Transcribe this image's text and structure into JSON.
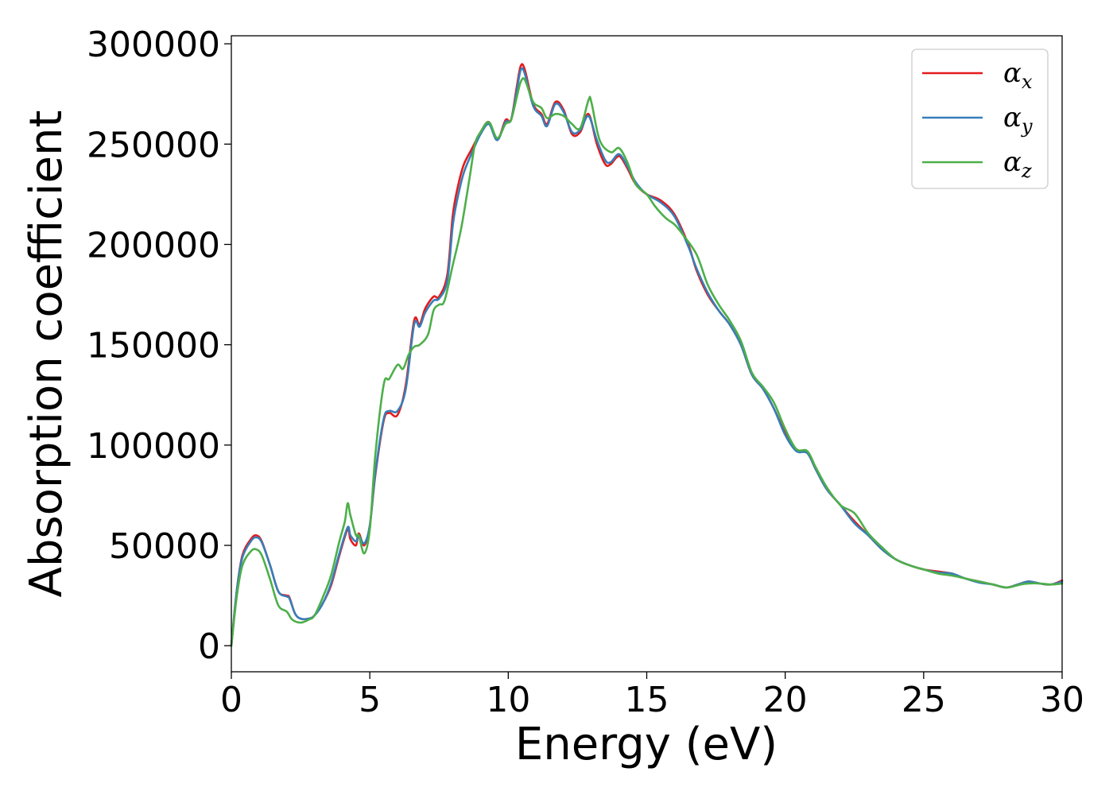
{
  "chart_data": {
    "type": "line",
    "title": "",
    "xlabel": "Energy (eV)",
    "ylabel": "Absorption coefficient",
    "xlim": [
      0,
      30
    ],
    "ylim": [
      -13000,
      304000
    ],
    "xticks": [
      0,
      5,
      10,
      15,
      20,
      25,
      30
    ],
    "yticks": [
      0,
      50000,
      100000,
      150000,
      200000,
      250000,
      300000
    ],
    "grid": false,
    "legend_position": "top-right",
    "series": [
      {
        "name": "α",
        "subscript": "x",
        "color": "#e41a1c",
        "points": [
          [
            0,
            0
          ],
          [
            0.2,
            28000
          ],
          [
            0.4,
            45000
          ],
          [
            0.7,
            53000
          ],
          [
            0.9,
            55000
          ],
          [
            1.1,
            52000
          ],
          [
            1.4,
            40000
          ],
          [
            1.7,
            27000
          ],
          [
            2.0,
            25000
          ],
          [
            2.1,
            24000
          ],
          [
            2.3,
            16000
          ],
          [
            2.5,
            13500
          ],
          [
            2.8,
            13500
          ],
          [
            3.0,
            15000
          ],
          [
            3.3,
            21000
          ],
          [
            3.6,
            30000
          ],
          [
            3.9,
            45000
          ],
          [
            4.2,
            58000
          ],
          [
            4.3,
            53000
          ],
          [
            4.5,
            50000
          ],
          [
            4.6,
            56000
          ],
          [
            4.8,
            50000
          ],
          [
            5.0,
            60000
          ],
          [
            5.2,
            85000
          ],
          [
            5.5,
            112000
          ],
          [
            5.7,
            116000
          ],
          [
            6.0,
            115000
          ],
          [
            6.3,
            130000
          ],
          [
            6.6,
            162000
          ],
          [
            6.8,
            160000
          ],
          [
            7.0,
            168000
          ],
          [
            7.3,
            174000
          ],
          [
            7.5,
            174000
          ],
          [
            7.8,
            185000
          ],
          [
            8.0,
            215000
          ],
          [
            8.2,
            230000
          ],
          [
            8.4,
            240000
          ],
          [
            8.7,
            248000
          ],
          [
            9.0,
            256000
          ],
          [
            9.3,
            261000
          ],
          [
            9.6,
            252000
          ],
          [
            9.9,
            262000
          ],
          [
            10.1,
            262000
          ],
          [
            10.3,
            278000
          ],
          [
            10.45,
            289000
          ],
          [
            10.6,
            287000
          ],
          [
            10.9,
            270000
          ],
          [
            11.2,
            265000
          ],
          [
            11.4,
            260000
          ],
          [
            11.7,
            271000
          ],
          [
            12.0,
            267000
          ],
          [
            12.3,
            255000
          ],
          [
            12.6,
            256000
          ],
          [
            12.9,
            265000
          ],
          [
            13.2,
            250000
          ],
          [
            13.5,
            240000
          ],
          [
            13.7,
            240000
          ],
          [
            14.0,
            244000
          ],
          [
            14.3,
            238000
          ],
          [
            14.6,
            230000
          ],
          [
            15.0,
            225000
          ],
          [
            15.5,
            222000
          ],
          [
            16.0,
            215000
          ],
          [
            16.5,
            200000
          ],
          [
            16.8,
            187000
          ],
          [
            17.2,
            175000
          ],
          [
            17.6,
            167000
          ],
          [
            18.0,
            160000
          ],
          [
            18.4,
            150000
          ],
          [
            18.8,
            135000
          ],
          [
            19.2,
            128000
          ],
          [
            19.6,
            118000
          ],
          [
            20.0,
            106000
          ],
          [
            20.4,
            98000
          ],
          [
            20.8,
            96000
          ],
          [
            21.1,
            88000
          ],
          [
            21.5,
            78000
          ],
          [
            22.0,
            70000
          ],
          [
            22.5,
            62000
          ],
          [
            23.0,
            55000
          ],
          [
            23.5,
            48000
          ],
          [
            24.0,
            43000
          ],
          [
            24.5,
            40000
          ],
          [
            25.0,
            38000
          ],
          [
            25.5,
            37000
          ],
          [
            26.0,
            36000
          ],
          [
            26.5,
            33500
          ],
          [
            27.0,
            32000
          ],
          [
            27.5,
            30500
          ],
          [
            28.0,
            29000
          ],
          [
            28.5,
            31000
          ],
          [
            28.8,
            32000
          ],
          [
            29.2,
            31000
          ],
          [
            29.6,
            30500
          ],
          [
            30.0,
            32500
          ]
        ]
      },
      {
        "name": "α",
        "subscript": "y",
        "color": "#377eb8",
        "points": [
          [
            0,
            0
          ],
          [
            0.2,
            28000
          ],
          [
            0.4,
            44000
          ],
          [
            0.7,
            52000
          ],
          [
            0.9,
            54000
          ],
          [
            1.1,
            51500
          ],
          [
            1.4,
            40000
          ],
          [
            1.7,
            27000
          ],
          [
            2.0,
            24500
          ],
          [
            2.1,
            23500
          ],
          [
            2.3,
            16000
          ],
          [
            2.5,
            13500
          ],
          [
            2.8,
            13500
          ],
          [
            3.0,
            15000
          ],
          [
            3.3,
            21000
          ],
          [
            3.6,
            31000
          ],
          [
            3.9,
            46000
          ],
          [
            4.2,
            59000
          ],
          [
            4.3,
            55000
          ],
          [
            4.5,
            52000
          ],
          [
            4.6,
            55000
          ],
          [
            4.8,
            51000
          ],
          [
            5.0,
            60000
          ],
          [
            5.2,
            86000
          ],
          [
            5.5,
            113000
          ],
          [
            5.7,
            117000
          ],
          [
            6.0,
            117000
          ],
          [
            6.3,
            128000
          ],
          [
            6.6,
            160000
          ],
          [
            6.8,
            159000
          ],
          [
            7.0,
            166000
          ],
          [
            7.3,
            172000
          ],
          [
            7.5,
            173000
          ],
          [
            7.8,
            182000
          ],
          [
            8.0,
            210000
          ],
          [
            8.2,
            225000
          ],
          [
            8.4,
            236000
          ],
          [
            8.7,
            246000
          ],
          [
            9.0,
            255000
          ],
          [
            9.3,
            260000
          ],
          [
            9.6,
            252000
          ],
          [
            9.9,
            261000
          ],
          [
            10.1,
            262000
          ],
          [
            10.3,
            276000
          ],
          [
            10.45,
            287000
          ],
          [
            10.6,
            285000
          ],
          [
            10.9,
            269000
          ],
          [
            11.2,
            264000
          ],
          [
            11.4,
            259000
          ],
          [
            11.7,
            270000
          ],
          [
            12.0,
            266000
          ],
          [
            12.3,
            256000
          ],
          [
            12.6,
            257000
          ],
          [
            12.9,
            264000
          ],
          [
            13.2,
            252000
          ],
          [
            13.5,
            242000
          ],
          [
            13.7,
            241000
          ],
          [
            14.0,
            245000
          ],
          [
            14.3,
            239000
          ],
          [
            14.6,
            231000
          ],
          [
            15.0,
            225000
          ],
          [
            15.5,
            221000
          ],
          [
            16.0,
            214000
          ],
          [
            16.5,
            199000
          ],
          [
            16.8,
            188000
          ],
          [
            17.2,
            176000
          ],
          [
            17.6,
            167000
          ],
          [
            18.0,
            160000
          ],
          [
            18.4,
            150000
          ],
          [
            18.8,
            135000
          ],
          [
            19.2,
            128000
          ],
          [
            19.6,
            118000
          ],
          [
            20.0,
            105000
          ],
          [
            20.4,
            97000
          ],
          [
            20.8,
            96000
          ],
          [
            21.1,
            88000
          ],
          [
            21.5,
            78000
          ],
          [
            22.0,
            70000
          ],
          [
            22.5,
            61000
          ],
          [
            23.0,
            55000
          ],
          [
            23.5,
            48000
          ],
          [
            24.0,
            43000
          ],
          [
            24.5,
            40000
          ],
          [
            25.0,
            38000
          ],
          [
            25.5,
            36500
          ],
          [
            26.0,
            36000
          ],
          [
            26.5,
            33500
          ],
          [
            27.0,
            31500
          ],
          [
            27.5,
            30500
          ],
          [
            28.0,
            29000
          ],
          [
            28.5,
            31000
          ],
          [
            28.8,
            32000
          ],
          [
            29.2,
            31000
          ],
          [
            29.6,
            30500
          ],
          [
            30.0,
            32000
          ]
        ]
      },
      {
        "name": "α",
        "subscript": "z",
        "color": "#4daf4a",
        "points": [
          [
            0,
            0
          ],
          [
            0.2,
            25000
          ],
          [
            0.4,
            40000
          ],
          [
            0.7,
            47000
          ],
          [
            0.9,
            48000
          ],
          [
            1.1,
            45000
          ],
          [
            1.4,
            33000
          ],
          [
            1.7,
            20000
          ],
          [
            2.0,
            17000
          ],
          [
            2.2,
            13000
          ],
          [
            2.5,
            11500
          ],
          [
            2.8,
            13000
          ],
          [
            3.0,
            15000
          ],
          [
            3.3,
            24000
          ],
          [
            3.6,
            35000
          ],
          [
            3.9,
            52000
          ],
          [
            4.1,
            62000
          ],
          [
            4.2,
            71000
          ],
          [
            4.3,
            65000
          ],
          [
            4.5,
            55000
          ],
          [
            4.6,
            55000
          ],
          [
            4.8,
            46000
          ],
          [
            5.0,
            58000
          ],
          [
            5.2,
            95000
          ],
          [
            5.5,
            130000
          ],
          [
            5.7,
            133000
          ],
          [
            6.0,
            140000
          ],
          [
            6.2,
            138000
          ],
          [
            6.4,
            145000
          ],
          [
            6.6,
            149000
          ],
          [
            6.8,
            150000
          ],
          [
            7.1,
            155000
          ],
          [
            7.3,
            167000
          ],
          [
            7.5,
            170000
          ],
          [
            7.7,
            172000
          ],
          [
            8.0,
            190000
          ],
          [
            8.3,
            208000
          ],
          [
            8.6,
            233000
          ],
          [
            8.8,
            250000
          ],
          [
            9.0,
            256000
          ],
          [
            9.3,
            261000
          ],
          [
            9.6,
            253000
          ],
          [
            9.9,
            260000
          ],
          [
            10.1,
            262000
          ],
          [
            10.3,
            273000
          ],
          [
            10.45,
            281000
          ],
          [
            10.6,
            282000
          ],
          [
            10.9,
            271000
          ],
          [
            11.2,
            268000
          ],
          [
            11.4,
            263000
          ],
          [
            11.7,
            265000
          ],
          [
            12.0,
            264000
          ],
          [
            12.3,
            260000
          ],
          [
            12.6,
            258000
          ],
          [
            12.9,
            272000
          ],
          [
            13.0,
            271000
          ],
          [
            13.3,
            252000
          ],
          [
            13.7,
            246000
          ],
          [
            14.0,
            248000
          ],
          [
            14.3,
            241000
          ],
          [
            14.6,
            230000
          ],
          [
            15.0,
            225000
          ],
          [
            15.3,
            219000
          ],
          [
            15.7,
            213000
          ],
          [
            16.0,
            210000
          ],
          [
            16.3,
            205000
          ],
          [
            16.8,
            195000
          ],
          [
            17.2,
            180000
          ],
          [
            17.6,
            170000
          ],
          [
            18.0,
            162000
          ],
          [
            18.4,
            152000
          ],
          [
            18.8,
            136000
          ],
          [
            19.2,
            129000
          ],
          [
            19.6,
            121000
          ],
          [
            20.0,
            108000
          ],
          [
            20.4,
            98000
          ],
          [
            20.8,
            97000
          ],
          [
            21.1,
            89000
          ],
          [
            21.5,
            79000
          ],
          [
            22.0,
            70000
          ],
          [
            22.5,
            66000
          ],
          [
            23.0,
            56000
          ],
          [
            23.5,
            49000
          ],
          [
            24.0,
            43000
          ],
          [
            24.5,
            40000
          ],
          [
            25.0,
            38000
          ],
          [
            25.5,
            36000
          ],
          [
            26.0,
            35000
          ],
          [
            26.5,
            33500
          ],
          [
            27.0,
            32000
          ],
          [
            27.5,
            30500
          ],
          [
            28.0,
            29000
          ],
          [
            28.5,
            30500
          ],
          [
            28.8,
            31000
          ],
          [
            29.2,
            31000
          ],
          [
            29.6,
            30500
          ],
          [
            30.0,
            31000
          ]
        ]
      }
    ]
  }
}
